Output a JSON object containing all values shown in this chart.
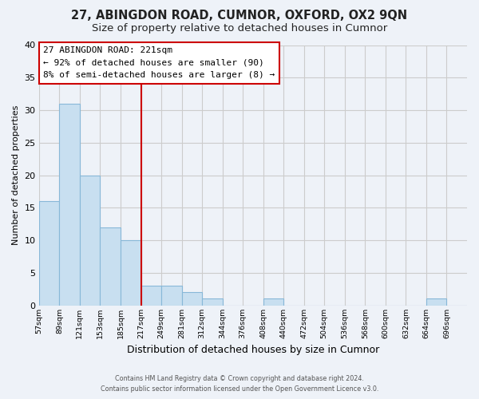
{
  "title": "27, ABINGDON ROAD, CUMNOR, OXFORD, OX2 9QN",
  "subtitle": "Size of property relative to detached houses in Cumnor",
  "xlabel": "Distribution of detached houses by size in Cumnor",
  "ylabel": "Number of detached properties",
  "bin_labels": [
    "57sqm",
    "89sqm",
    "121sqm",
    "153sqm",
    "185sqm",
    "217sqm",
    "249sqm",
    "281sqm",
    "312sqm",
    "344sqm",
    "376sqm",
    "408sqm",
    "440sqm",
    "472sqm",
    "504sqm",
    "536sqm",
    "568sqm",
    "600sqm",
    "632sqm",
    "664sqm",
    "696sqm"
  ],
  "bar_values": [
    16,
    31,
    20,
    12,
    10,
    3,
    3,
    2,
    1,
    0,
    0,
    1,
    0,
    0,
    0,
    0,
    0,
    0,
    0,
    1,
    0
  ],
  "bar_color": "#c8dff0",
  "bar_edgecolor": "#88b8d8",
  "vline_x": 5,
  "vline_color": "#cc0000",
  "ylim": [
    0,
    40
  ],
  "yticks": [
    0,
    5,
    10,
    15,
    20,
    25,
    30,
    35,
    40
  ],
  "annotation_title": "27 ABINGDON ROAD: 221sqm",
  "annotation_line1": "← 92% of detached houses are smaller (90)",
  "annotation_line2": "8% of semi-detached houses are larger (8) →",
  "annotation_box_color": "#ffffff",
  "annotation_box_edgecolor": "#cc0000",
  "footer1": "Contains HM Land Registry data © Crown copyright and database right 2024.",
  "footer2": "Contains public sector information licensed under the Open Government Licence v3.0.",
  "background_color": "#eef2f8",
  "grid_color": "#cccccc",
  "title_fontsize": 10.5,
  "subtitle_fontsize": 9.5
}
